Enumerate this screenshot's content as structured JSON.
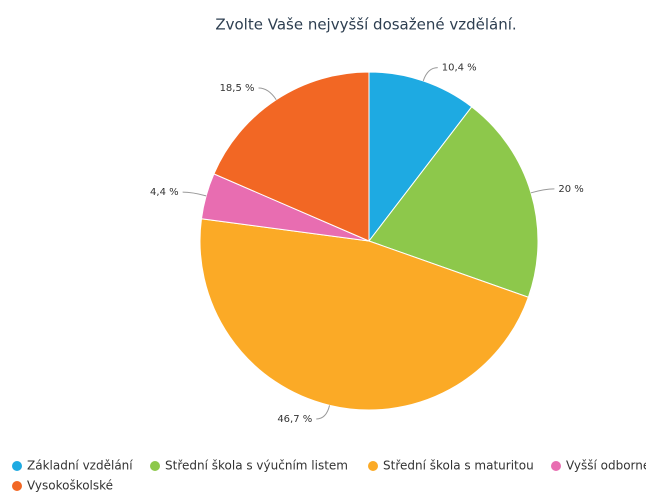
{
  "chart_data": {
    "type": "pie",
    "title": "Zvolte Vaše nejvyšší dosažené vzdělání.",
    "categories": [
      "Základní vzdělání",
      "Střední škola s výučním listem",
      "Střední škola s maturitou",
      "Vyšší odborné",
      "Vysokoškolské"
    ],
    "values": [
      10.4,
      20,
      46.7,
      4.4,
      18.5
    ],
    "value_labels": [
      "10,4 %",
      "20 %",
      "46,7 %",
      "4,4 %",
      "18,5 %"
    ],
    "colors": [
      "#1eaae2",
      "#8dc84b",
      "#fbaa26",
      "#e86db1",
      "#f26724"
    ]
  }
}
